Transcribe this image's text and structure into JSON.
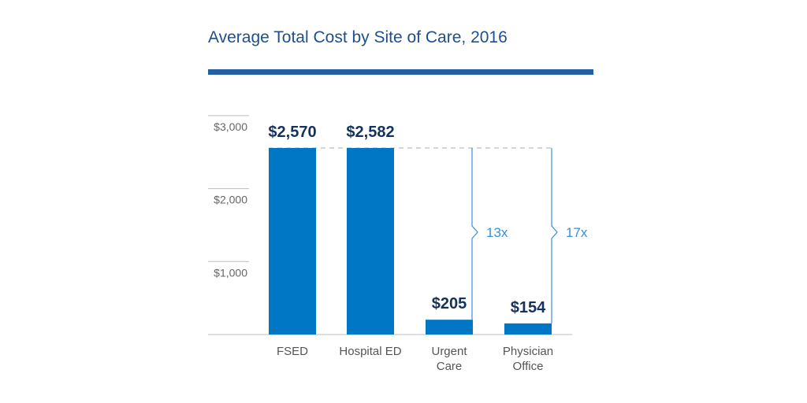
{
  "chart_data": {
    "type": "bar",
    "title": "Average Total Cost by Site of Care, 2016",
    "xlabel": "",
    "ylabel": "",
    "categories": [
      [
        "FSED"
      ],
      [
        "Hospital ED"
      ],
      [
        "Urgent",
        "Care"
      ],
      [
        "Physician",
        "Office"
      ]
    ],
    "values": [
      2570,
      2582,
      205,
      154
    ],
    "value_labels": [
      "$2,570",
      "$2,582",
      "$205",
      "$154"
    ],
    "y_ticks": [
      {
        "value": 1000,
        "label": "$1,000"
      },
      {
        "value": 2000,
        "label": "$2,000"
      },
      {
        "value": 3000,
        "label": "$3,000"
      }
    ],
    "ylim": [
      0,
      3000
    ],
    "grid": false,
    "annotations": [
      {
        "label": "13x",
        "category": "Urgent Care",
        "description": "ED cost is 13x Urgent Care"
      },
      {
        "label": "17x",
        "category": "Physician Office",
        "description": "ED cost is 17x Physician Office"
      }
    ],
    "colors": {
      "bar": "#0077c5",
      "title": "#1d4f91",
      "value_label": "#13325c",
      "annotation": "#3a90d6",
      "reference_line": "#c8c8c8"
    }
  }
}
